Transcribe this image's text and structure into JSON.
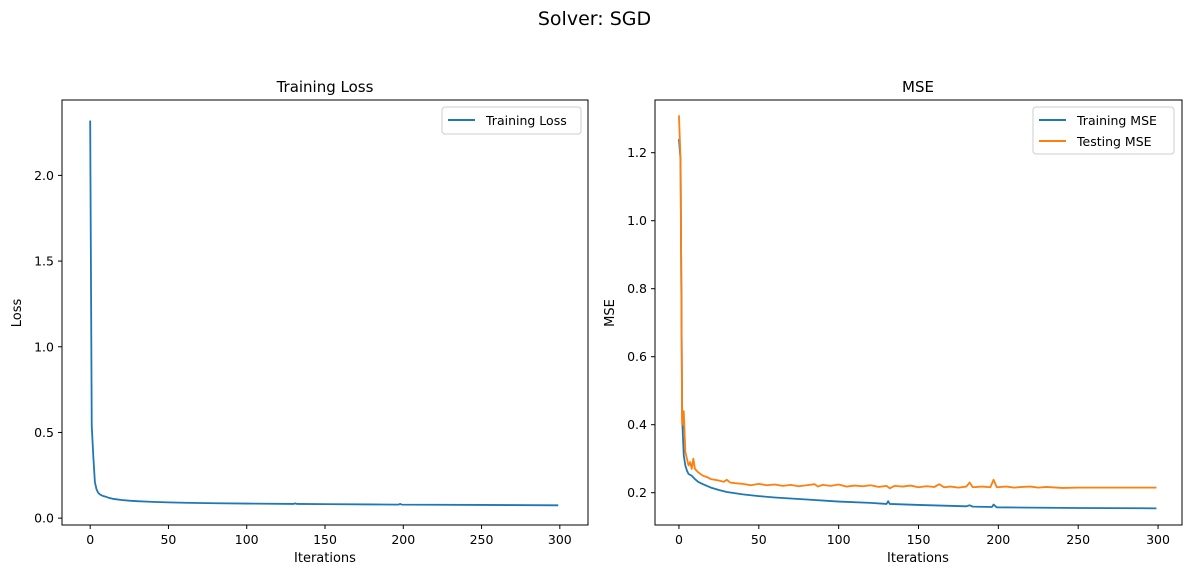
{
  "figure": {
    "suptitle": "Solver: SGD"
  },
  "chart_data": [
    {
      "type": "line",
      "title": "Training Loss",
      "xlabel": "Iterations",
      "ylabel": "Loss",
      "xlim": [
        -18,
        318
      ],
      "ylim": [
        -0.04,
        2.44
      ],
      "xticks": [
        0,
        50,
        100,
        150,
        200,
        250,
        300
      ],
      "yticks": [
        0.0,
        0.5,
        1.0,
        1.5,
        2.0,
        2.5
      ],
      "ytick_labels": [
        "0.0",
        "0.5",
        "1.0",
        "1.5",
        "2.0"
      ],
      "grid": false,
      "legend": "top-right",
      "series": [
        {
          "name": "Training Loss",
          "color": "#1f77b4",
          "points": [
            [
              0,
              2.32
            ],
            [
              1,
              0.54
            ],
            [
              2,
              0.36
            ],
            [
              3,
              0.21
            ],
            [
              4,
              0.17
            ],
            [
              5,
              0.15
            ],
            [
              6,
              0.14
            ],
            [
              8,
              0.13
            ],
            [
              10,
              0.125
            ],
            [
              12,
              0.118
            ],
            [
              15,
              0.112
            ],
            [
              20,
              0.106
            ],
            [
              25,
              0.102
            ],
            [
              30,
              0.099
            ],
            [
              40,
              0.095
            ],
            [
              50,
              0.092
            ],
            [
              60,
              0.09
            ],
            [
              80,
              0.087
            ],
            [
              100,
              0.085
            ],
            [
              130,
              0.083
            ],
            [
              131,
              0.086
            ],
            [
              132,
              0.083
            ],
            [
              150,
              0.082
            ],
            [
              180,
              0.08
            ],
            [
              197,
              0.079
            ],
            [
              198,
              0.083
            ],
            [
              199,
              0.079
            ],
            [
              220,
              0.078
            ],
            [
              250,
              0.077
            ],
            [
              299,
              0.075
            ]
          ]
        }
      ]
    },
    {
      "type": "line",
      "title": "MSE",
      "xlabel": "Iterations",
      "ylabel": "MSE",
      "xlim": [
        -15,
        315
      ],
      "ylim": [
        0.105,
        1.355
      ],
      "xticks": [
        0,
        50,
        100,
        150,
        200,
        250,
        300
      ],
      "yticks": [
        0.2,
        0.4,
        0.6,
        0.8,
        1.0,
        1.2
      ],
      "ytick_labels": [
        "0.2",
        "0.4",
        "0.6",
        "0.8",
        "1.0",
        "1.2"
      ],
      "grid": false,
      "legend": "top-right",
      "series": [
        {
          "name": "Training MSE",
          "color": "#1f77b4",
          "points": [
            [
              0,
              1.24
            ],
            [
              1,
              1.18
            ],
            [
              2,
              0.42
            ],
            [
              3,
              0.31
            ],
            [
              4,
              0.28
            ],
            [
              5,
              0.265
            ],
            [
              6,
              0.255
            ],
            [
              8,
              0.25
            ],
            [
              10,
              0.24
            ],
            [
              12,
              0.232
            ],
            [
              15,
              0.225
            ],
            [
              20,
              0.215
            ],
            [
              25,
              0.208
            ],
            [
              30,
              0.202
            ],
            [
              40,
              0.195
            ],
            [
              50,
              0.19
            ],
            [
              60,
              0.186
            ],
            [
              80,
              0.18
            ],
            [
              100,
              0.174
            ],
            [
              120,
              0.17
            ],
            [
              130,
              0.167
            ],
            [
              131,
              0.175
            ],
            [
              132,
              0.167
            ],
            [
              150,
              0.164
            ],
            [
              180,
              0.16
            ],
            [
              182,
              0.163
            ],
            [
              184,
              0.159
            ],
            [
              196,
              0.158
            ],
            [
              197,
              0.165
            ],
            [
              199,
              0.157
            ],
            [
              220,
              0.156
            ],
            [
              250,
              0.155
            ],
            [
              299,
              0.154
            ]
          ]
        },
        {
          "name": "Testing MSE",
          "color": "#ff7f0e",
          "points": [
            [
              0,
              1.31
            ],
            [
              1,
              1.18
            ],
            [
              2,
              0.4
            ],
            [
              3,
              0.44
            ],
            [
              4,
              0.32
            ],
            [
              5,
              0.3
            ],
            [
              6,
              0.28
            ],
            [
              7,
              0.29
            ],
            [
              8,
              0.27
            ],
            [
              9,
              0.3
            ],
            [
              10,
              0.27
            ],
            [
              12,
              0.26
            ],
            [
              15,
              0.25
            ],
            [
              18,
              0.245
            ],
            [
              20,
              0.24
            ],
            [
              25,
              0.236
            ],
            [
              28,
              0.232
            ],
            [
              30,
              0.238
            ],
            [
              32,
              0.23
            ],
            [
              35,
              0.228
            ],
            [
              40,
              0.226
            ],
            [
              45,
              0.222
            ],
            [
              50,
              0.226
            ],
            [
              55,
              0.222
            ],
            [
              60,
              0.224
            ],
            [
              65,
              0.22
            ],
            [
              70,
              0.223
            ],
            [
              75,
              0.219
            ],
            [
              80,
              0.222
            ],
            [
              85,
              0.225
            ],
            [
              87,
              0.218
            ],
            [
              90,
              0.223
            ],
            [
              95,
              0.22
            ],
            [
              100,
              0.224
            ],
            [
              105,
              0.218
            ],
            [
              110,
              0.221
            ],
            [
              115,
              0.219
            ],
            [
              120,
              0.222
            ],
            [
              125,
              0.217
            ],
            [
              130,
              0.22
            ],
            [
              132,
              0.213
            ],
            [
              135,
              0.22
            ],
            [
              140,
              0.218
            ],
            [
              145,
              0.221
            ],
            [
              150,
              0.216
            ],
            [
              155,
              0.219
            ],
            [
              160,
              0.217
            ],
            [
              163,
              0.225
            ],
            [
              166,
              0.216
            ],
            [
              170,
              0.218
            ],
            [
              175,
              0.215
            ],
            [
              180,
              0.218
            ],
            [
              182,
              0.23
            ],
            [
              184,
              0.216
            ],
            [
              190,
              0.218
            ],
            [
              195,
              0.216
            ],
            [
              197,
              0.238
            ],
            [
              199,
              0.216
            ],
            [
              205,
              0.218
            ],
            [
              210,
              0.215
            ],
            [
              215,
              0.217
            ],
            [
              220,
              0.218
            ],
            [
              225,
              0.215
            ],
            [
              230,
              0.217
            ],
            [
              240,
              0.214
            ],
            [
              250,
              0.215
            ],
            [
              270,
              0.215
            ],
            [
              299,
              0.215
            ]
          ]
        }
      ]
    }
  ]
}
